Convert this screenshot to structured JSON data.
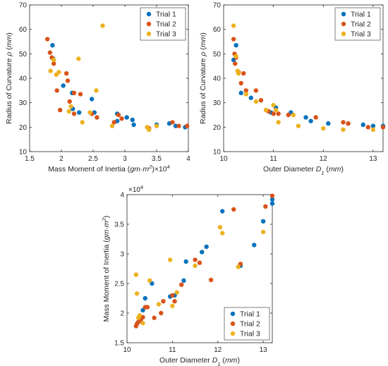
{
  "chart_data": [
    {
      "type": "scatter",
      "xlabel": [
        "Mass Moment of Inertia (",
        "gm·m",
        "2",
        ")×10",
        "4"
      ],
      "ylabel": [
        "Radius of Curvature ",
        "ρ",
        " (",
        "mm",
        ")"
      ],
      "xlim": [
        1.5,
        4.0
      ],
      "ylim": [
        10,
        70
      ],
      "xticks": [
        1.5,
        2.0,
        2.5,
        3.0,
        3.5,
        4.0
      ],
      "xtick_labels": [
        "1.5",
        "2",
        "2.5",
        "3",
        "3.5",
        "4"
      ],
      "yticks": [
        10,
        20,
        30,
        40,
        50,
        60,
        70
      ],
      "ytick_labels": [
        "10",
        "20",
        "30",
        "40",
        "50",
        "60",
        "70"
      ],
      "legend_position": "top-right",
      "series": [
        {
          "name": "Trial 1",
          "color": "#0072BD",
          "points": [
            [
              1.86,
              53.5
            ],
            [
              1.87,
              48
            ],
            [
              2.03,
              37
            ],
            [
              2.17,
              34
            ],
            [
              2.18,
              27.5
            ],
            [
              2.28,
              26
            ],
            [
              2.48,
              31.5
            ],
            [
              2.52,
              26
            ],
            [
              2.88,
              25.5
            ],
            [
              2.88,
              22.5
            ],
            [
              3.03,
              24
            ],
            [
              3.12,
              23
            ],
            [
              3.14,
              21
            ],
            [
              3.5,
              21
            ],
            [
              3.7,
              21.5
            ],
            [
              3.8,
              20.5
            ],
            [
              3.95,
              20
            ]
          ]
        },
        {
          "name": "Trial 2",
          "color": "#D95319",
          "points": [
            [
              1.78,
              56
            ],
            [
              1.82,
              50.5
            ],
            [
              1.85,
              48.5
            ],
            [
              1.88,
              46
            ],
            [
              1.93,
              35
            ],
            [
              1.98,
              27
            ],
            [
              2.08,
              42
            ],
            [
              2.1,
              39
            ],
            [
              2.13,
              30.5
            ],
            [
              2.2,
              25.5
            ],
            [
              2.2,
              34
            ],
            [
              2.3,
              33.5
            ],
            [
              2.48,
              25.5
            ],
            [
              2.56,
              24
            ],
            [
              2.83,
              22
            ],
            [
              2.9,
              25
            ],
            [
              2.95,
              23.5
            ],
            [
              3.38,
              19.5
            ],
            [
              3.75,
              22
            ],
            [
              3.85,
              20.5
            ],
            [
              3.98,
              20.5
            ]
          ]
        },
        {
          "name": "Trial 3",
          "color": "#EDB120",
          "points": [
            [
              1.83,
              43
            ],
            [
              1.88,
              47.5
            ],
            [
              1.92,
              41.5
            ],
            [
              1.96,
              42.5
            ],
            [
              2.12,
              26.5
            ],
            [
              2.15,
              28.5
            ],
            [
              2.27,
              48
            ],
            [
              2.33,
              22
            ],
            [
              2.45,
              26
            ],
            [
              2.55,
              35
            ],
            [
              2.65,
              61.5
            ],
            [
              2.8,
              20.5
            ],
            [
              3.35,
              20
            ],
            [
              3.38,
              19
            ],
            [
              3.5,
              20.5
            ]
          ]
        }
      ]
    },
    {
      "type": "scatter",
      "xlabel": [
        "Outer Diameter ",
        "D",
        "1",
        " (",
        "mm",
        ")"
      ],
      "ylabel": [
        "Radius of Curvature ",
        "ρ",
        " (",
        "mm",
        ")"
      ],
      "xlim": [
        10,
        13.2
      ],
      "ylim": [
        10,
        70
      ],
      "xticks": [
        10,
        11,
        12,
        13
      ],
      "xtick_labels": [
        "10",
        "11",
        "12",
        "13"
      ],
      "yticks": [
        10,
        20,
        30,
        40,
        50,
        60,
        70
      ],
      "ytick_labels": [
        "10",
        "20",
        "30",
        "40",
        "50",
        "60",
        "70"
      ],
      "legend_position": "top-right",
      "series": [
        {
          "name": "Trial 1",
          "color": "#0072BD",
          "points": [
            [
              10.2,
              47.5
            ],
            [
              10.25,
              53.5
            ],
            [
              10.35,
              34
            ],
            [
              10.55,
              32
            ],
            [
              10.95,
              26
            ],
            [
              11.05,
              28
            ],
            [
              11.35,
              26
            ],
            [
              11.65,
              24
            ],
            [
              11.75,
              22.5
            ],
            [
              12.1,
              21.5
            ],
            [
              12.5,
              21.5
            ],
            [
              12.8,
              21
            ],
            [
              13.0,
              20.5
            ],
            [
              13.2,
              20.5
            ]
          ]
        },
        {
          "name": "Trial 2",
          "color": "#D95319",
          "points": [
            [
              10.2,
              56
            ],
            [
              10.22,
              50
            ],
            [
              10.23,
              46
            ],
            [
              10.25,
              48.5
            ],
            [
              10.3,
              42.5
            ],
            [
              10.35,
              38
            ],
            [
              10.4,
              42
            ],
            [
              10.45,
              35
            ],
            [
              10.65,
              35
            ],
            [
              10.75,
              31
            ],
            [
              10.9,
              26.5
            ],
            [
              11.0,
              25.5
            ],
            [
              11.1,
              25.5
            ],
            [
              11.3,
              25
            ],
            [
              11.85,
              24
            ],
            [
              12.4,
              22
            ],
            [
              12.5,
              21.5
            ],
            [
              12.9,
              20
            ],
            [
              13.2,
              20
            ]
          ]
        },
        {
          "name": "Trial 3",
          "color": "#EDB120",
          "points": [
            [
              10.2,
              61.5
            ],
            [
              10.25,
              49
            ],
            [
              10.28,
              43
            ],
            [
              10.3,
              42
            ],
            [
              10.45,
              33.5
            ],
            [
              10.65,
              30.5
            ],
            [
              10.85,
              27
            ],
            [
              11.0,
              29
            ],
            [
              11.05,
              27
            ],
            [
              11.1,
              22
            ],
            [
              11.4,
              25
            ],
            [
              11.5,
              20.5
            ],
            [
              12.0,
              19.5
            ],
            [
              12.4,
              19
            ],
            [
              13.0,
              19
            ]
          ]
        }
      ]
    },
    {
      "type": "scatter",
      "xlabel": [
        "Outer Diameter ",
        "D",
        "1",
        " (",
        "mm",
        ")"
      ],
      "ylabel": [
        "Mass Moment of Inertia (",
        "gm·m",
        "2",
        ")"
      ],
      "exponent_label": [
        "×10",
        "4"
      ],
      "xlim": [
        10,
        13.2
      ],
      "ylim": [
        1.5,
        4.0
      ],
      "xticks": [
        10,
        11,
        12,
        13
      ],
      "xtick_labels": [
        "10",
        "11",
        "12",
        "13"
      ],
      "yticks": [
        1.5,
        2.0,
        2.5,
        3.0,
        3.5,
        4.0
      ],
      "ytick_labels": [
        "1.5",
        "2",
        "2.5",
        "3",
        "3.5",
        "4"
      ],
      "legend_position": "bottom-right",
      "series": [
        {
          "name": "Trial 1",
          "color": "#0072BD",
          "points": [
            [
              10.25,
              1.85
            ],
            [
              10.3,
              1.9
            ],
            [
              10.35,
              2.05
            ],
            [
              10.4,
              2.25
            ],
            [
              10.55,
              2.5
            ],
            [
              10.95,
              2.28
            ],
            [
              11.05,
              2.3
            ],
            [
              11.25,
              2.55
            ],
            [
              11.3,
              2.87
            ],
            [
              11.65,
              3.03
            ],
            [
              11.75,
              3.12
            ],
            [
              12.1,
              3.72
            ],
            [
              12.5,
              2.8
            ],
            [
              12.8,
              3.15
            ],
            [
              13.0,
              3.55
            ],
            [
              13.2,
              3.85
            ],
            [
              13.2,
              3.92
            ]
          ]
        },
        {
          "name": "Trial 2",
          "color": "#D95319",
          "points": [
            [
              10.2,
              1.78
            ],
            [
              10.22,
              1.82
            ],
            [
              10.25,
              1.85
            ],
            [
              10.3,
              1.88
            ],
            [
              10.35,
              1.93
            ],
            [
              10.4,
              2.1
            ],
            [
              10.45,
              2.1
            ],
            [
              10.6,
              1.92
            ],
            [
              10.75,
              2.0
            ],
            [
              10.8,
              2.2
            ],
            [
              11.0,
              2.3
            ],
            [
              11.05,
              2.2
            ],
            [
              11.2,
              2.48
            ],
            [
              11.5,
              2.9
            ],
            [
              11.6,
              2.85
            ],
            [
              11.85,
              2.56
            ],
            [
              12.35,
              3.75
            ],
            [
              12.5,
              2.83
            ],
            [
              13.05,
              3.8
            ],
            [
              13.2,
              3.98
            ]
          ]
        },
        {
          "name": "Trial 3",
          "color": "#EDB120",
          "points": [
            [
              10.2,
              2.65
            ],
            [
              10.22,
              2.33
            ],
            [
              10.25,
              1.92
            ],
            [
              10.28,
              1.96
            ],
            [
              10.35,
              1.83
            ],
            [
              10.5,
              2.55
            ],
            [
              10.7,
              2.15
            ],
            [
              10.95,
              2.9
            ],
            [
              11.0,
              2.12
            ],
            [
              11.1,
              2.35
            ],
            [
              11.5,
              2.8
            ],
            [
              12.05,
              3.45
            ],
            [
              12.1,
              3.35
            ],
            [
              12.45,
              2.78
            ],
            [
              13.0,
              3.37
            ]
          ]
        }
      ]
    }
  ]
}
